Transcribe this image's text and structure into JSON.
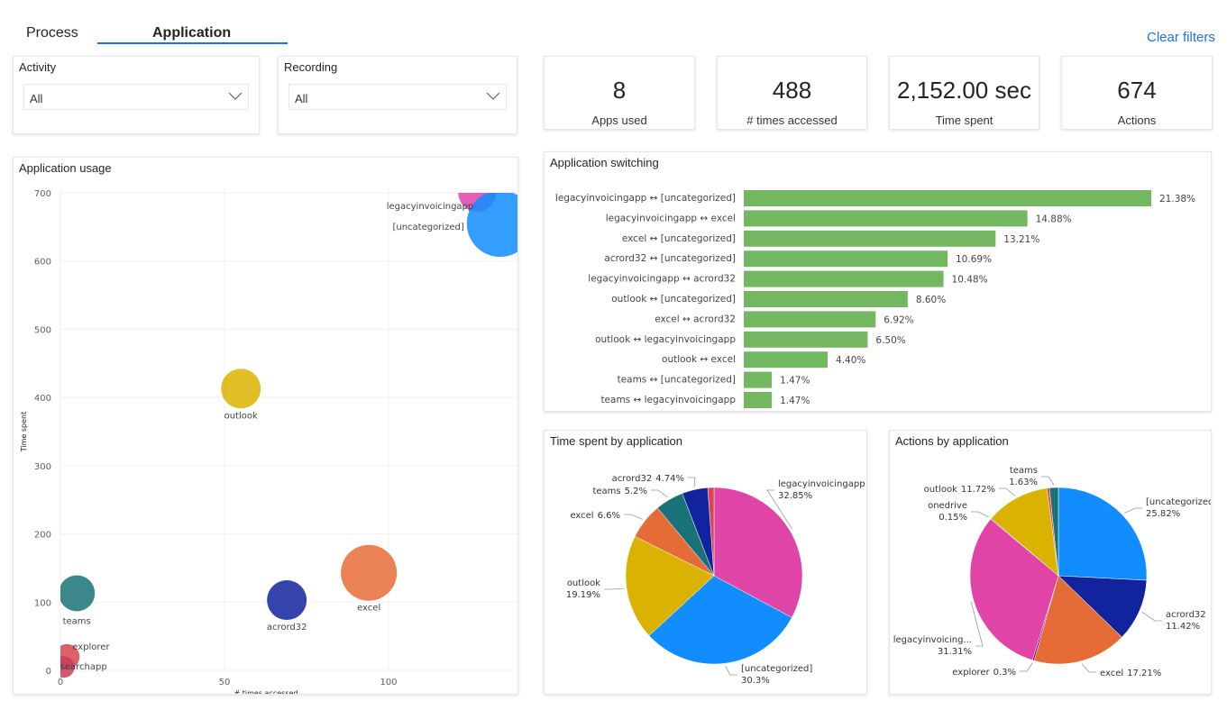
{
  "tabs": [
    {
      "label": "Process",
      "active": false
    },
    {
      "label": "Application",
      "active": true
    }
  ],
  "clear_filters": "Clear filters",
  "accent": "#1a73e8",
  "filters": [
    {
      "label": "Activity",
      "value": "All",
      "icon": "chevron-down-icon"
    },
    {
      "label": "Recording",
      "value": "All",
      "icon": "chevron-down-icon"
    }
  ],
  "kpis": [
    {
      "value": "8",
      "label": "Apps used"
    },
    {
      "value": "488",
      "label": "# times accessed"
    },
    {
      "value": "2,152.00 sec",
      "label": "Time spent"
    },
    {
      "value": "674",
      "label": "Actions"
    }
  ],
  "chart_data": [
    {
      "type": "scatter",
      "title": "Application usage",
      "xlabel": "# times accessed",
      "ylabel": "Time spent",
      "xlim": [
        0,
        140
      ],
      "ylim": [
        0,
        700
      ],
      "xticks": [
        "0",
        "50",
        "100"
      ],
      "yticks": [
        "0",
        "100",
        "200",
        "300",
        "400",
        "500",
        "600",
        "700"
      ],
      "grid": true,
      "points": [
        {
          "name": "legacyinvoicingapp",
          "x": 127,
          "y": 700,
          "color": "#e044a7"
        },
        {
          "name": "[uncategorized]",
          "x": 134,
          "y": 655,
          "color": "#118dff"
        },
        {
          "name": "outlook",
          "x": 55,
          "y": 413,
          "color": "#d9b300"
        },
        {
          "name": "excel",
          "x": 94,
          "y": 143,
          "color": "#e66c37"
        },
        {
          "name": "acrord32",
          "x": 69,
          "y": 103,
          "color": "#12239e"
        },
        {
          "name": "teams",
          "x": 5,
          "y": 113,
          "color": "#197278"
        },
        {
          "name": "explorer",
          "x": 2,
          "y": 20,
          "color": "#d64550"
        },
        {
          "name": "searchapp",
          "x": 1,
          "y": 5,
          "color": "#c83d5c"
        }
      ]
    },
    {
      "type": "bar",
      "title": "Application switching",
      "orientation": "horizontal",
      "color": "#73b761",
      "categories": [
        "legacyinvoicingapp ↔ [uncategorized]",
        "legacyinvoicingapp ↔ excel",
        "excel ↔ [uncategorized]",
        "acrord32 ↔ [uncategorized]",
        "legacyinvoicingapp ↔ acrord32",
        "outlook ↔ [uncategorized]",
        "excel ↔ acrord32",
        "outlook ↔ legacyinvoicingapp",
        "outlook ↔ excel",
        "teams ↔ [uncategorized]",
        "teams ↔ legacyinvoicingapp"
      ],
      "values": [
        21.38,
        14.88,
        13.21,
        10.69,
        10.48,
        8.6,
        6.92,
        6.5,
        4.4,
        1.47,
        1.47
      ],
      "labels": [
        "21.38%",
        "14.88%",
        "13.21%",
        "10.69%",
        "10.48%",
        "8.60%",
        "6.92%",
        "6.50%",
        "4.40%",
        "1.47%",
        "1.47%"
      ]
    },
    {
      "type": "pie",
      "title": "Time spent by application",
      "slices": [
        {
          "name": "legacyinvoicingapp",
          "value": 32.85,
          "label": "32.85%",
          "color": "#e044a7"
        },
        {
          "name": "[uncategorized]",
          "value": 30.3,
          "label": "30.3%",
          "color": "#118dff"
        },
        {
          "name": "outlook",
          "value": 19.19,
          "label": "19.19%",
          "color": "#d9b300"
        },
        {
          "name": "excel",
          "value": 6.6,
          "label": "6.6%",
          "color": "#e66c37"
        },
        {
          "name": "teams",
          "value": 5.2,
          "label": "5.2%",
          "color": "#197278"
        },
        {
          "name": "acrord32",
          "value": 4.74,
          "label": "4.74%",
          "color": "#12239e"
        },
        {
          "name": "",
          "value": 1.12,
          "label": "",
          "color": "#d64550"
        }
      ]
    },
    {
      "type": "pie",
      "title": "Actions by application",
      "slices": [
        {
          "name": "[uncategorized]",
          "value": 25.82,
          "label": "25.82%",
          "color": "#118dff"
        },
        {
          "name": "acrord32",
          "value": 11.42,
          "label": "11.42%",
          "color": "#12239e"
        },
        {
          "name": "excel",
          "value": 17.21,
          "label": "17.21%",
          "color": "#e66c37"
        },
        {
          "name": "explorer",
          "value": 0.3,
          "label": "0.3%",
          "color": "#6b007b"
        },
        {
          "name": "legacyinvoicing...",
          "value": 31.31,
          "label": "31.31%",
          "color": "#e044a7"
        },
        {
          "name": "onedrive",
          "value": 0.15,
          "label": "0.15%",
          "color": "#744ec2"
        },
        {
          "name": "outlook",
          "value": 11.72,
          "label": "11.72%",
          "color": "#d9b300"
        },
        {
          "name": "",
          "value": 0.44,
          "label": "",
          "color": "#d64550"
        },
        {
          "name": "teams",
          "value": 1.63,
          "label": "1.63%",
          "color": "#197278"
        }
      ]
    }
  ]
}
